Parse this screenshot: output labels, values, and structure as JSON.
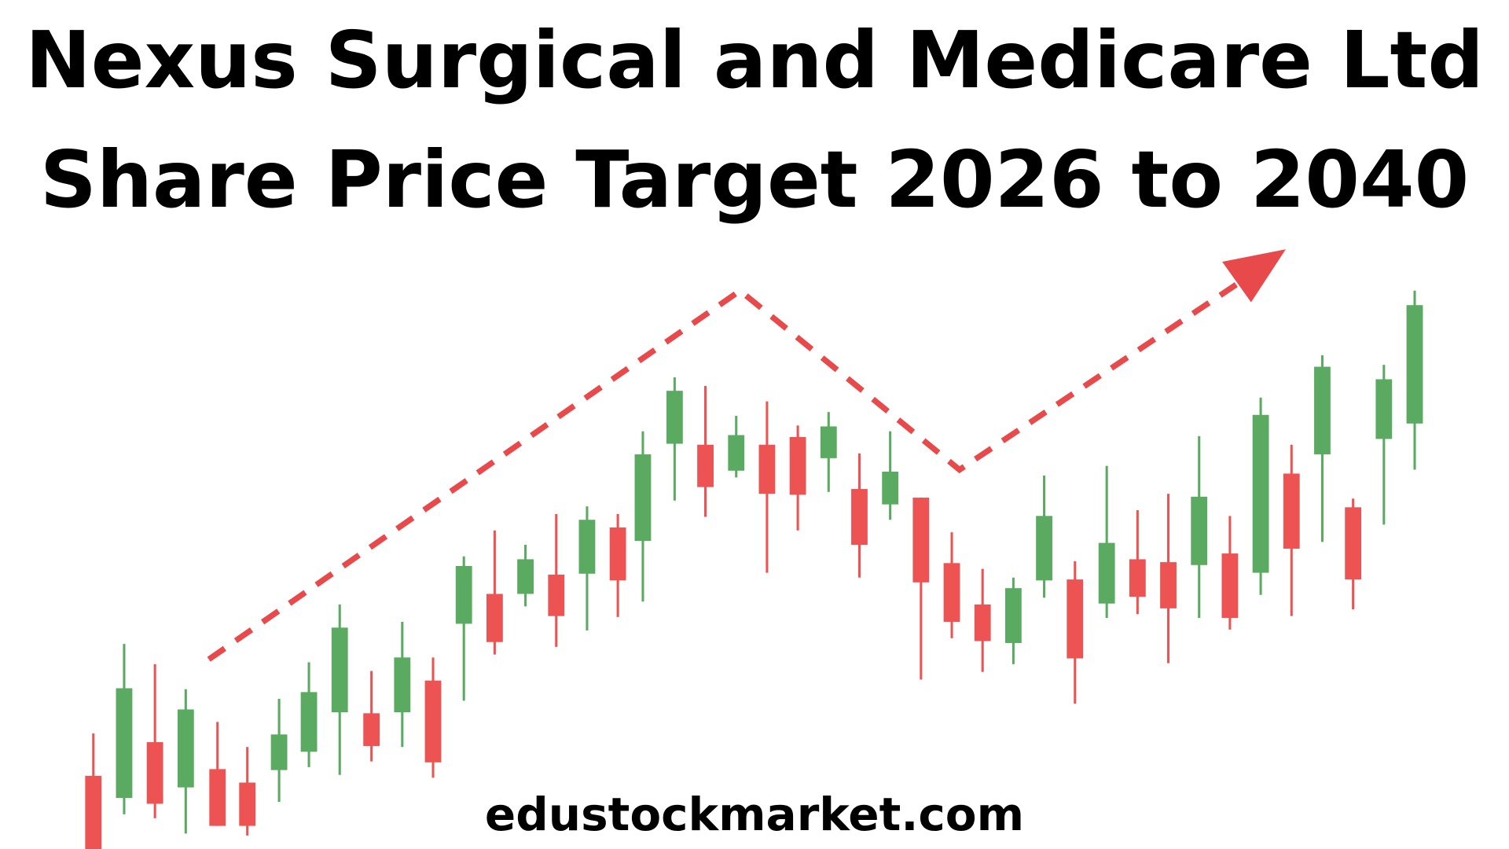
{
  "title": {
    "line1": "Nexus Surgical and Medicare Ltd",
    "line2": "Share Price Target 2026 to 2040"
  },
  "footer": {
    "website": "edustockmarket.com"
  },
  "colors": {
    "bullish_candle": "#5aab61",
    "bearish_candle": "#ee5353",
    "trend_arrow": "#e8494a",
    "background": "#ffffff",
    "text": "#000000"
  },
  "icons": {
    "trend": "dashed-trend-arrow-icon"
  }
}
